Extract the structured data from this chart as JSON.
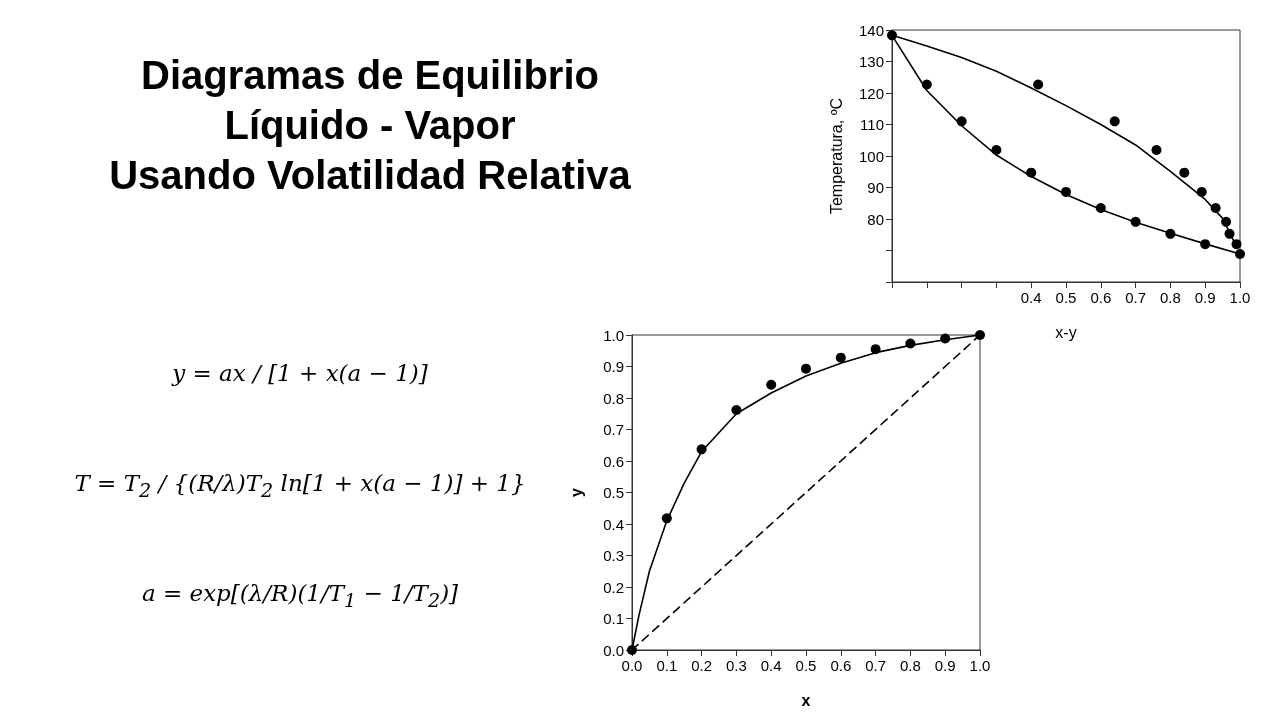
{
  "chart_data": [
    {
      "type": "other",
      "title": "Diagramas de Equilibrio\nLíquido - Vapor\nUsando Volatilidad Relativa",
      "annotations": [
        "y = ax / [1 + x(a − 1)]",
        "T = T$_{2}$ / {(R/λ)T$_{2}$ ln[1 + x(a − 1)] + 1}",
        "a = exp[(λ/R)(1/T$_{1}$ − 1/T$_{2}$)]"
      ]
    },
    {
      "type": "line",
      "xlabel": "x-y",
      "ylabel": "Temperatura, ºC",
      "xlim": [
        0,
        1
      ],
      "ylim": [
        60,
        140
      ],
      "xticks": [
        {
          "value": 0,
          "label": null
        },
        {
          "value": 0.1,
          "label": null
        },
        {
          "value": 0.2,
          "label": null
        },
        {
          "value": 0.3,
          "label": null
        },
        0.4,
        0.5,
        0.6,
        0.7,
        0.8,
        0.9,
        {
          "value": 1,
          "label": "1.0"
        }
      ],
      "yticks": [
        {
          "value": 60,
          "label": null
        },
        {
          "value": 70,
          "label": null
        },
        80,
        90,
        100,
        110,
        120,
        130,
        140
      ],
      "grid": false,
      "series": [
        {
          "type": "line",
          "color": "#000000",
          "marker": "none",
          "line_style": "solid",
          "x": [
            0,
            0.1,
            0.2,
            0.3,
            0.4,
            0.5,
            0.6,
            0.7,
            0.8,
            0.9,
            1
          ],
          "values": [
            138.3,
            120.8,
            109.6,
            100.3,
            93.5,
            87.8,
            83.0,
            79.0,
            75.5,
            72.1,
            68.9
          ]
        },
        {
          "type": "line",
          "color": "#000000",
          "marker": "none",
          "line_style": "solid",
          "x": [
            0.01,
            0.1,
            0.2,
            0.3,
            0.4,
            0.5,
            0.6,
            0.7,
            0.8,
            0.9,
            0.95,
            0.99
          ],
          "values": [
            138.0,
            134.9,
            131.3,
            126.9,
            121.6,
            116.0,
            110.0,
            103.5,
            95.1,
            86.2,
            80.2,
            71.2
          ]
        },
        {
          "type": "scatter",
          "color": "#000000",
          "marker": "circle",
          "x": [
            0,
            0.1,
            0.2,
            0.3,
            0.4,
            0.5,
            0.6,
            0.7,
            0.8,
            0.9,
            1
          ],
          "values": [
            138.3,
            122.7,
            111.0,
            101.9,
            94.7,
            88.6,
            83.5,
            79.1,
            75.3,
            72.0,
            68.9
          ]
        },
        {
          "type": "scatter",
          "color": "#000000",
          "marker": "circle",
          "x": [
            0.42,
            0.64,
            0.76,
            0.84,
            0.89,
            0.93,
            0.96,
            0.97,
            0.99
          ],
          "values": [
            122.7,
            111.0,
            101.9,
            94.7,
            88.6,
            83.5,
            79.1,
            75.3,
            72.0
          ]
        }
      ]
    },
    {
      "type": "line",
      "xlabel": "x",
      "ylabel": "y",
      "xlim": [
        0,
        1
      ],
      "ylim": [
        0,
        1
      ],
      "xticks": [
        {
          "value": 0,
          "label": "0.0"
        },
        0.1,
        0.2,
        0.3,
        0.4,
        0.5,
        0.6,
        0.7,
        0.8,
        0.9,
        {
          "value": 1,
          "label": "1.0"
        }
      ],
      "yticks": [
        {
          "value": 0,
          "label": "0.0"
        },
        0.1,
        0.2,
        0.3,
        0.4,
        0.5,
        0.6,
        0.7,
        0.8,
        0.9,
        {
          "value": 1,
          "label": "1.0"
        }
      ],
      "grid": false,
      "series": [
        {
          "type": "line",
          "color": "#000000",
          "marker": "none",
          "line_style": "solid",
          "x": [
            0,
            0.02,
            0.05,
            0.1,
            0.15,
            0.2,
            0.3,
            0.4,
            0.5,
            0.6,
            0.7,
            0.8,
            0.9,
            1
          ],
          "values": [
            0,
            0.11,
            0.25,
            0.41,
            0.53,
            0.63,
            0.75,
            0.816,
            0.87,
            0.91,
            0.944,
            0.967,
            0.985,
            1
          ]
        },
        {
          "type": "line",
          "color": "#000000",
          "marker": "none",
          "line_style": "dashed",
          "x": [
            0,
            1
          ],
          "values": [
            0,
            1
          ]
        },
        {
          "type": "scatter",
          "color": "#000000",
          "marker": "circle",
          "x": [
            0,
            0.1,
            0.2,
            0.3,
            0.4,
            0.5,
            0.6,
            0.7,
            0.8,
            0.9,
            1
          ],
          "values": [
            0,
            0.418,
            0.637,
            0.762,
            0.842,
            0.893,
            0.928,
            0.955,
            0.973,
            0.989,
            1
          ]
        }
      ]
    }
  ]
}
